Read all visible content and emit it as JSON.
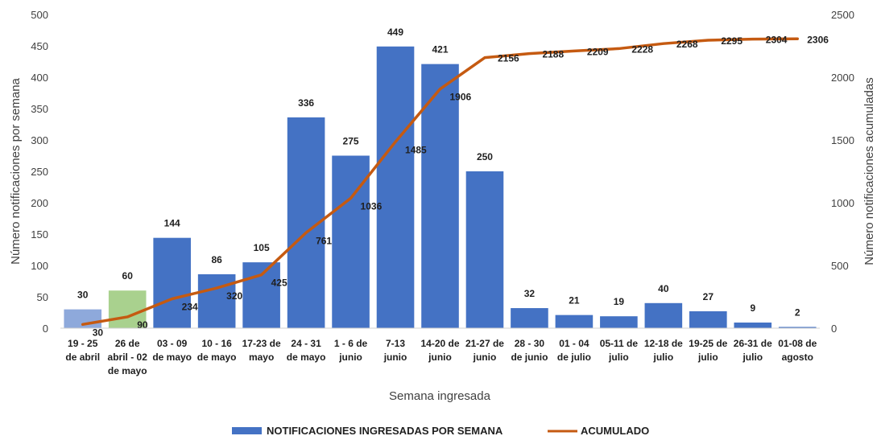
{
  "chart_data": {
    "type": "bar",
    "categories": [
      [
        "19 - 25",
        "de abril"
      ],
      [
        "26 de",
        "abril - 02",
        "de mayo"
      ],
      [
        "03 - 09",
        "de mayo"
      ],
      [
        "10 - 16",
        "de mayo"
      ],
      [
        "17-23 de",
        "mayo"
      ],
      [
        "24 - 31",
        "de mayo"
      ],
      [
        "1 - 6 de",
        "junio"
      ],
      [
        "7-13",
        "junio"
      ],
      [
        "14-20 de",
        "junio"
      ],
      [
        "21-27 de",
        "junio"
      ],
      [
        "28 - 30",
        "de junio"
      ],
      [
        "01 - 04",
        "de julio"
      ],
      [
        "05-11 de",
        "julio"
      ],
      [
        "12-18 de",
        "julio"
      ],
      [
        "19-25 de",
        "julio"
      ],
      [
        "26-31 de",
        "julio"
      ],
      [
        "01-08 de",
        "agosto"
      ]
    ],
    "series": [
      {
        "name": "NOTIFICACIONES INGRESADAS POR SEMANA",
        "type": "bar",
        "axis": "left",
        "values": [
          30,
          60,
          144,
          86,
          105,
          336,
          275,
          449,
          421,
          250,
          32,
          21,
          19,
          40,
          27,
          9,
          2
        ],
        "color": "#4472C4",
        "point_colors": {
          "0": "#8EA9DB",
          "1": "#A9D18E"
        }
      },
      {
        "name": "ACUMULADO",
        "type": "line",
        "axis": "right",
        "values": [
          30,
          90,
          234,
          320,
          425,
          761,
          1036,
          1485,
          1906,
          2156,
          2188,
          2209,
          2228,
          2268,
          2295,
          2304,
          2306
        ],
        "color": "#C55A11"
      }
    ],
    "xlabel": "Semana ingresada",
    "ylabel": "Número notificaciones por semana",
    "y2label": "Número notificaciones acumuladas",
    "ylim": [
      0,
      500
    ],
    "y2lim": [
      0,
      2500
    ],
    "yticks": [
      0,
      50,
      100,
      150,
      200,
      250,
      300,
      350,
      400,
      450,
      500
    ],
    "y2ticks": [
      0,
      500,
      1000,
      1500,
      2000,
      2500
    ],
    "grid": false,
    "legend_position": "bottom"
  }
}
